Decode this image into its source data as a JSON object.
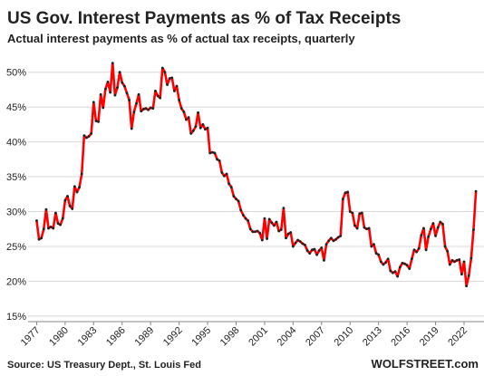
{
  "chart_data": {
    "type": "line",
    "title": "US Gov. Interest Payments as % of Tax Receipts",
    "subtitle": "Actual interest payments as % of actual tax receipts, quarterly",
    "source": "Source: US Treasury Dept., St. Louis Fed",
    "brand": "WOLFSTREET.com",
    "x": [
      1977,
      1977.25,
      1977.5,
      1977.75,
      1978,
      1978.25,
      1978.5,
      1978.75,
      1979,
      1979.25,
      1979.5,
      1979.75,
      1980,
      1980.25,
      1980.5,
      1980.75,
      1981,
      1981.25,
      1981.5,
      1981.75,
      1982,
      1982.25,
      1982.5,
      1982.75,
      1983,
      1983.25,
      1983.5,
      1983.75,
      1984,
      1984.25,
      1984.5,
      1984.75,
      1985,
      1985.25,
      1985.5,
      1985.75,
      1986,
      1986.25,
      1986.5,
      1986.75,
      1987,
      1987.25,
      1987.5,
      1987.75,
      1988,
      1988.25,
      1988.5,
      1988.75,
      1989,
      1989.25,
      1989.5,
      1989.75,
      1990,
      1990.25,
      1990.5,
      1990.75,
      1991,
      1991.25,
      1991.5,
      1991.75,
      1992,
      1992.25,
      1992.5,
      1992.75,
      1993,
      1993.25,
      1993.5,
      1993.75,
      1994,
      1994.25,
      1994.5,
      1994.75,
      1995,
      1995.25,
      1995.5,
      1995.75,
      1996,
      1996.25,
      1996.5,
      1996.75,
      1997,
      1997.25,
      1997.5,
      1997.75,
      1998,
      1998.25,
      1998.5,
      1998.75,
      1999,
      1999.25,
      1999.5,
      1999.75,
      2000,
      2000.25,
      2000.5,
      2000.75,
      2001,
      2001.25,
      2001.5,
      2001.75,
      2002,
      2002.25,
      2002.5,
      2002.75,
      2003,
      2003.25,
      2003.5,
      2003.75,
      2004,
      2004.25,
      2004.5,
      2004.75,
      2005,
      2005.25,
      2005.5,
      2005.75,
      2006,
      2006.25,
      2006.5,
      2006.75,
      2007,
      2007.25,
      2007.5,
      2007.75,
      2008,
      2008.25,
      2008.5,
      2008.75,
      2009,
      2009.25,
      2009.5,
      2009.75,
      2010,
      2010.25,
      2010.5,
      2010.75,
      2011,
      2011.25,
      2011.5,
      2011.75,
      2012,
      2012.25,
      2012.5,
      2012.75,
      2013,
      2013.25,
      2013.5,
      2013.75,
      2014,
      2014.25,
      2014.5,
      2014.75,
      2015,
      2015.25,
      2015.5,
      2015.75,
      2016,
      2016.25,
      2016.5,
      2016.75,
      2017,
      2017.25,
      2017.5,
      2017.75,
      2018,
      2018.25,
      2018.5,
      2018.75,
      2019,
      2019.25,
      2019.5,
      2019.75,
      2020,
      2020.25,
      2020.5,
      2020.75,
      2021,
      2021.25,
      2021.5,
      2021.75,
      2022,
      2022.25,
      2022.5,
      2022.75,
      2023,
      2023.25
    ],
    "series": [
      {
        "name": "Interest payments as % of tax receipts",
        "color": "#ff0000",
        "marker_color": "#222222",
        "values": [
          28.7,
          26.0,
          26.2,
          27.5,
          30.3,
          27.6,
          27.8,
          27.6,
          29.8,
          28.3,
          28.1,
          29.0,
          31.6,
          32.2,
          30.8,
          30.4,
          33.6,
          32.8,
          33.5,
          35.4,
          40.9,
          40.6,
          40.8,
          41.2,
          45.7,
          43.0,
          42.9,
          46.8,
          44.9,
          47.6,
          48.6,
          47.1,
          51.3,
          46.7,
          47.8,
          50.0,
          48.5,
          48.0,
          47.0,
          46.0,
          41.9,
          44.3,
          45.5,
          46.8,
          44.4,
          44.7,
          44.8,
          44.6,
          44.9,
          44.8,
          47.3,
          46.6,
          46.3,
          50.6,
          50.0,
          48.2,
          49.1,
          49.2,
          47.3,
          48.0,
          46.0,
          44.8,
          44.3,
          43.2,
          43.5,
          41.2,
          41.6,
          42.2,
          44.2,
          42.0,
          42.5,
          41.8,
          42.0,
          38.4,
          38.5,
          38.4,
          37.5,
          37.3,
          35.6,
          35.1,
          35.4,
          34.0,
          33.5,
          32.2,
          31.8,
          31.5,
          30.2,
          29.5,
          29.0,
          28.7,
          27.5,
          27.1,
          27.1,
          27.2,
          26.9,
          25.9,
          29.0,
          26.1,
          28.9,
          28.4,
          28.0,
          28.5,
          27.2,
          27.4,
          30.5,
          26.2,
          26.8,
          27.0,
          25.0,
          25.5,
          25.9,
          25.7,
          25.4,
          25.2,
          24.4,
          24.0,
          24.5,
          24.6,
          23.8,
          24.4,
          24.8,
          23.0,
          25.3,
          25.8,
          26.2,
          25.8,
          26.0,
          26.3,
          26.5,
          31.8,
          32.7,
          32.8,
          30.0,
          29.8,
          28.0,
          27.6,
          29.7,
          29.8,
          27.7,
          27.5,
          27.6,
          25.0,
          25.3,
          24.0,
          23.8,
          22.8,
          22.4,
          22.7,
          23.2,
          21.5,
          21.2,
          21.4,
          20.7,
          22.0,
          22.6,
          22.5,
          22.3,
          21.8,
          23.2,
          24.5,
          24.2,
          24.7,
          26.6,
          27.6,
          24.5,
          26.4,
          27.5,
          28.3,
          26.5,
          27.7,
          28.5,
          28.2,
          25.0,
          24.3,
          22.4,
          23.0,
          22.8,
          23.0,
          23.1,
          21.0,
          22.8,
          19.3,
          20.8,
          23.3,
          27.4,
          32.9
        ]
      }
    ],
    "xlim": [
      1976.1,
      2024.1
    ],
    "xticks": [
      1977,
      1980,
      1983,
      1986,
      1989,
      1992,
      1995,
      1998,
      2001,
      2004,
      2007,
      2010,
      2013,
      2016,
      2019,
      2022
    ],
    "ylim": [
      14.2,
      52.3
    ],
    "yticks": [
      {
        "value": 15,
        "label": "15%"
      },
      {
        "value": 20,
        "label": "20%"
      },
      {
        "value": 25,
        "label": "25%"
      },
      {
        "value": 30,
        "label": "30%"
      },
      {
        "value": 35,
        "label": "35%"
      },
      {
        "value": 40,
        "label": "40%"
      },
      {
        "value": 45,
        "label": "45%"
      },
      {
        "value": 50,
        "label": "50%"
      }
    ],
    "grid": true
  }
}
